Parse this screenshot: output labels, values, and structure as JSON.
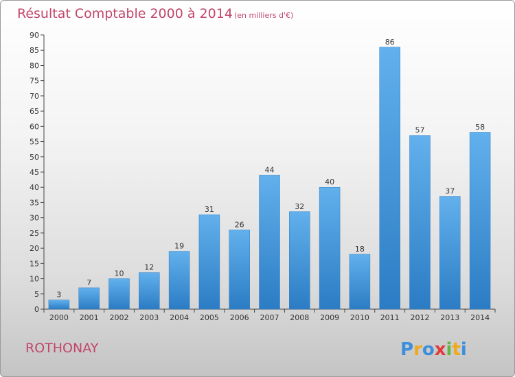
{
  "chart_data": {
    "type": "bar",
    "title": "Résultat Comptable 2000 à 2014",
    "subtitle": "(en milliers d'€)",
    "categories": [
      "2000",
      "2001",
      "2002",
      "2003",
      "2004",
      "2005",
      "2006",
      "2007",
      "2008",
      "2009",
      "2010",
      "2011",
      "2012",
      "2013",
      "2014"
    ],
    "values": [
      3,
      7,
      10,
      12,
      19,
      31,
      26,
      44,
      32,
      40,
      18,
      86,
      57,
      37,
      58
    ],
    "ylim": [
      0,
      90
    ],
    "yticks": [
      0,
      5,
      10,
      15,
      20,
      25,
      30,
      35,
      40,
      45,
      50,
      55,
      60,
      65,
      70,
      75,
      80,
      85,
      90
    ],
    "xlabel": "",
    "ylabel": "",
    "grid": false,
    "legend": "none",
    "bar_color": "#3b8fd6"
  },
  "location": "ROTHONAY",
  "logo": {
    "text": "Proxiti",
    "letters": [
      {
        "char": "P",
        "color": "#3d8fdc"
      },
      {
        "char": "r",
        "color": "#f0a81c"
      },
      {
        "char": "o",
        "color": "#3d8fdc"
      },
      {
        "char": "x",
        "color": "#e23a3a"
      },
      {
        "char": "i",
        "color": "#62b53e"
      },
      {
        "char": "t",
        "color": "#f0a81c"
      },
      {
        "char": "i",
        "color": "#3d8fdc"
      }
    ]
  }
}
